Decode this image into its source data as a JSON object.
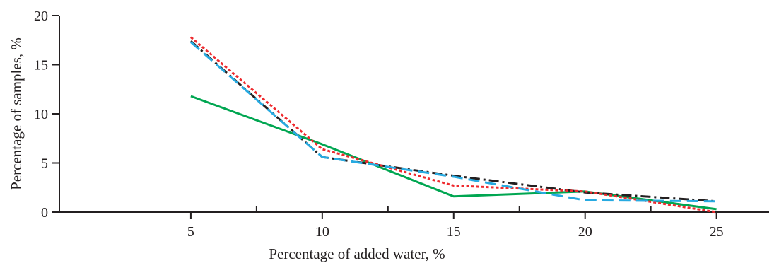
{
  "chart_data": {
    "type": "line",
    "title": "",
    "xlabel": "Percentage of added water, %",
    "ylabel": "Percentage of samples, %",
    "x": [
      5,
      10,
      15,
      20,
      25
    ],
    "x_ticks": [
      "5",
      "10",
      "15",
      "20",
      "25"
    ],
    "y_ticks": [
      "0",
      "5",
      "10",
      "15",
      "20"
    ],
    "xlim": [
      0,
      27
    ],
    "ylim": [
      0,
      20
    ],
    "grid": false,
    "legend": "none",
    "series": [
      {
        "color": "#00a651",
        "style": "solid",
        "values": [
          11.8,
          6.9,
          1.6,
          2.1,
          0.3
        ]
      },
      {
        "color": "#231f20",
        "style": "dashdot",
        "values": [
          17.4,
          5.6,
          3.7,
          2.0,
          1.1
        ]
      },
      {
        "color": "#ee2a2e",
        "style": "dotted",
        "values": [
          17.8,
          6.4,
          2.7,
          2.1,
          0.0
        ]
      },
      {
        "color": "#27aae1",
        "style": "dashed",
        "values": [
          17.3,
          5.6,
          3.6,
          1.2,
          1.1
        ]
      }
    ]
  }
}
